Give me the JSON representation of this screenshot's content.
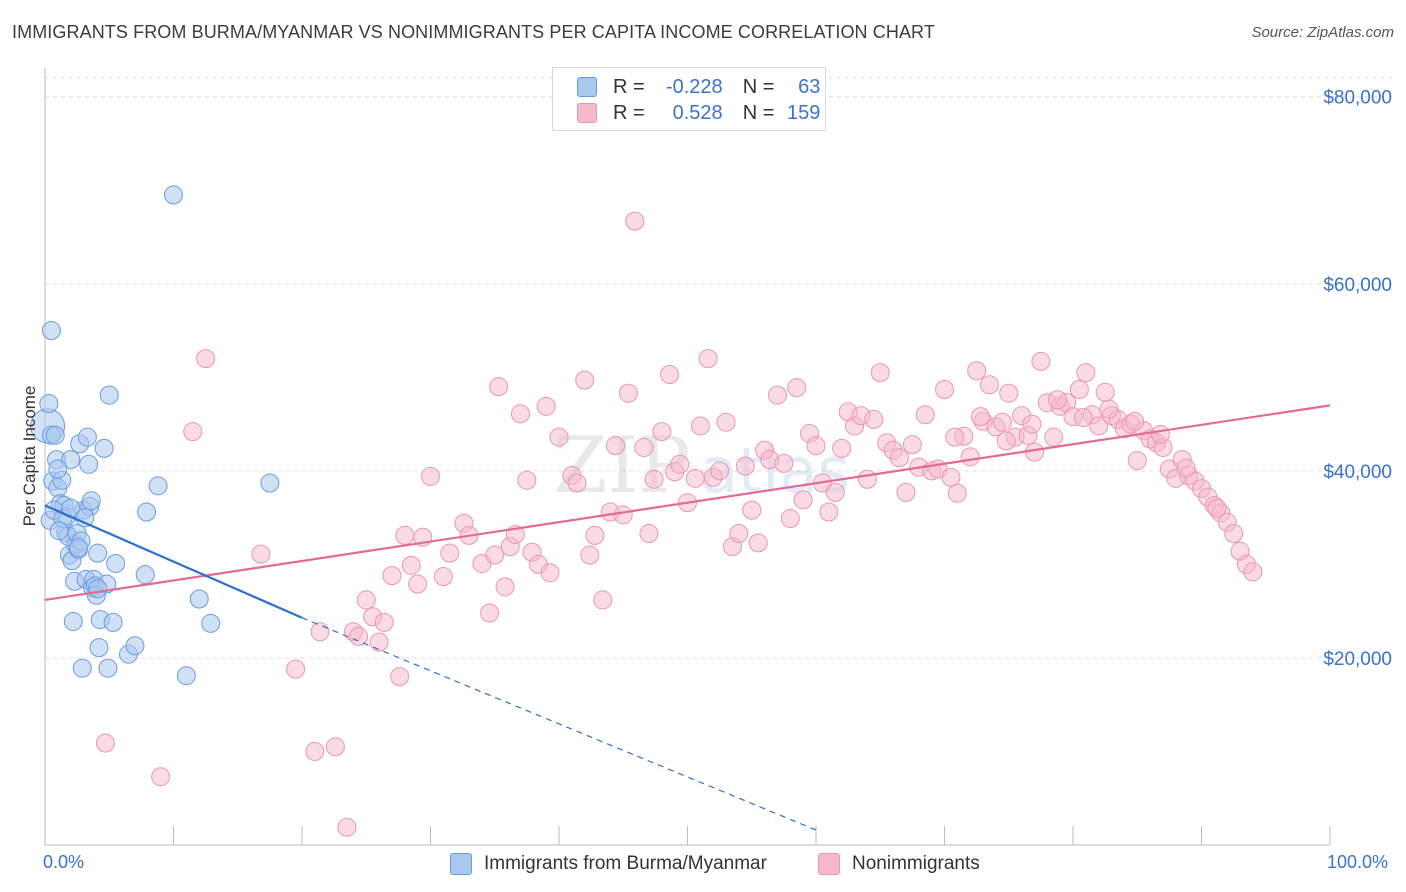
{
  "title": "IMMIGRANTS FROM BURMA/MYANMAR VS NONIMMIGRANTS PER CAPITA INCOME CORRELATION CHART",
  "source": "Source: ZipAtlas.com",
  "watermark": {
    "zip": "ZIP",
    "atlas": "atlas"
  },
  "legend_top": {
    "r_label": "R =",
    "n_label": "N =",
    "rows": [
      {
        "r": "-0.228",
        "n": "63"
      },
      {
        "r": "0.528",
        "n": "159"
      }
    ]
  },
  "colors": {
    "blue_fill": "#a9c8ee",
    "blue_stroke": "#6a9be0",
    "blue_line": "#2d6fce",
    "pink_fill": "#f5b8cb",
    "pink_stroke": "#e996b1",
    "pink_line": "#e36a94",
    "axis_label": "#3a73c9",
    "grid": "#dcdcdc"
  },
  "chart_data": {
    "type": "scatter",
    "title": "IMMIGRANTS FROM BURMA/MYANMAR VS NONIMMIGRANTS PER CAPITA INCOME CORRELATION CHART",
    "xlabel": "",
    "ylabel": "Per Capita Income",
    "xlim": [
      0,
      100
    ],
    "ylim": [
      0,
      80000
    ],
    "x_tick_labels": [
      "0.0%",
      "100.0%"
    ],
    "y_ticks": [
      20000,
      40000,
      60000,
      80000
    ],
    "y_tick_labels": [
      "$20,000",
      "$40,000",
      "$60,000",
      "$80,000"
    ],
    "grid": true,
    "legend": "bottom-center",
    "series": [
      {
        "name": "Immigrants from Burma/Myanmar",
        "color": "#a9c8ee",
        "trend": {
          "x": [
            0,
            20
          ],
          "y": [
            36300,
            24300
          ],
          "dashed_to": [
            60,
            1600
          ]
        },
        "points": [
          [
            0.2,
            44800
          ],
          [
            0.5,
            43800
          ],
          [
            0.4,
            34700
          ],
          [
            0.6,
            38900
          ],
          [
            0.3,
            47200
          ],
          [
            0.5,
            55000
          ],
          [
            0.8,
            43800
          ],
          [
            0.9,
            41200
          ],
          [
            1.0,
            38200
          ],
          [
            1.2,
            36500
          ],
          [
            1.3,
            39000
          ],
          [
            1.5,
            36300
          ],
          [
            1.6,
            33400
          ],
          [
            1.7,
            35100
          ],
          [
            1.8,
            33000
          ],
          [
            1.9,
            31000
          ],
          [
            2.0,
            41200
          ],
          [
            2.1,
            30400
          ],
          [
            2.2,
            23900
          ],
          [
            2.3,
            28200
          ],
          [
            2.4,
            32100
          ],
          [
            2.5,
            33300
          ],
          [
            2.6,
            31600
          ],
          [
            2.7,
            42900
          ],
          [
            2.8,
            32500
          ],
          [
            2.9,
            18900
          ],
          [
            3.0,
            35800
          ],
          [
            3.2,
            28400
          ],
          [
            3.3,
            43600
          ],
          [
            3.4,
            40700
          ],
          [
            3.5,
            36200
          ],
          [
            3.6,
            36800
          ],
          [
            3.7,
            27500
          ],
          [
            3.8,
            28400
          ],
          [
            3.9,
            27700
          ],
          [
            4.0,
            26700
          ],
          [
            4.1,
            31200
          ],
          [
            4.2,
            21100
          ],
          [
            4.3,
            24100
          ],
          [
            4.6,
            42400
          ],
          [
            4.8,
            27900
          ],
          [
            4.9,
            18900
          ],
          [
            5.0,
            48100
          ],
          [
            5.3,
            23800
          ],
          [
            5.5,
            30100
          ],
          [
            6.5,
            20400
          ],
          [
            7.0,
            21300
          ],
          [
            7.8,
            28900
          ],
          [
            7.9,
            35600
          ],
          [
            8.8,
            38400
          ],
          [
            10.0,
            69500
          ],
          [
            11.0,
            18100
          ],
          [
            12.0,
            26300
          ],
          [
            12.9,
            23700
          ],
          [
            17.5,
            38700
          ],
          [
            1.0,
            40200
          ],
          [
            0.7,
            35800
          ],
          [
            1.4,
            34900
          ],
          [
            2.0,
            36000
          ],
          [
            2.6,
            31800
          ],
          [
            3.1,
            35000
          ],
          [
            4.1,
            27400
          ],
          [
            1.1,
            33600
          ]
        ]
      },
      {
        "name": "Nonimmigrants",
        "color": "#f5b8cb",
        "trend": {
          "x": [
            0,
            100
          ],
          "y": [
            26200,
            47000
          ]
        },
        "points": [
          [
            4.7,
            10900
          ],
          [
            9.0,
            7300
          ],
          [
            11.5,
            44200
          ],
          [
            12.5,
            52000
          ],
          [
            16.8,
            31100
          ],
          [
            19.5,
            18800
          ],
          [
            21.0,
            10000
          ],
          [
            21.4,
            22800
          ],
          [
            22.6,
            10500
          ],
          [
            23.5,
            1900
          ],
          [
            24.0,
            22800
          ],
          [
            24.4,
            22300
          ],
          [
            25.0,
            26200
          ],
          [
            25.5,
            24400
          ],
          [
            26.0,
            21700
          ],
          [
            26.4,
            23800
          ],
          [
            27.0,
            28800
          ],
          [
            27.6,
            18000
          ],
          [
            28.0,
            33100
          ],
          [
            28.5,
            29900
          ],
          [
            29.0,
            27900
          ],
          [
            29.4,
            32900
          ],
          [
            30.0,
            39400
          ],
          [
            31.0,
            28700
          ],
          [
            31.5,
            31200
          ],
          [
            32.6,
            34400
          ],
          [
            33.0,
            33100
          ],
          [
            34.0,
            30100
          ],
          [
            34.6,
            24800
          ],
          [
            35.0,
            31000
          ],
          [
            35.3,
            49000
          ],
          [
            35.8,
            27600
          ],
          [
            36.2,
            31900
          ],
          [
            36.6,
            33200
          ],
          [
            37.0,
            46100
          ],
          [
            37.5,
            39000
          ],
          [
            37.9,
            31300
          ],
          [
            38.4,
            30000
          ],
          [
            39.0,
            46900
          ],
          [
            39.3,
            29100
          ],
          [
            40.0,
            43600
          ],
          [
            41.0,
            39500
          ],
          [
            41.4,
            38700
          ],
          [
            42.0,
            49700
          ],
          [
            42.4,
            31000
          ],
          [
            42.8,
            33100
          ],
          [
            43.4,
            26200
          ],
          [
            44.0,
            35600
          ],
          [
            44.4,
            42700
          ],
          [
            45.0,
            35300
          ],
          [
            45.4,
            48300
          ],
          [
            45.9,
            66700
          ],
          [
            46.6,
            42500
          ],
          [
            47.0,
            33300
          ],
          [
            47.4,
            39100
          ],
          [
            48.0,
            44200
          ],
          [
            48.6,
            50300
          ],
          [
            49.0,
            39900
          ],
          [
            49.4,
            40700
          ],
          [
            50.0,
            36600
          ],
          [
            50.6,
            39200
          ],
          [
            51.0,
            44800
          ],
          [
            51.6,
            52000
          ],
          [
            52.0,
            39300
          ],
          [
            52.5,
            40000
          ],
          [
            53.0,
            45200
          ],
          [
            53.5,
            31900
          ],
          [
            54.0,
            33300
          ],
          [
            54.5,
            40500
          ],
          [
            55.0,
            35800
          ],
          [
            55.5,
            32300
          ],
          [
            56.0,
            42200
          ],
          [
            56.4,
            41200
          ],
          [
            57.0,
            48100
          ],
          [
            57.5,
            40800
          ],
          [
            58.0,
            34900
          ],
          [
            58.5,
            48900
          ],
          [
            59.0,
            36900
          ],
          [
            59.5,
            44000
          ],
          [
            60.0,
            42700
          ],
          [
            60.5,
            38700
          ],
          [
            61.0,
            35600
          ],
          [
            61.5,
            37700
          ],
          [
            62.0,
            42400
          ],
          [
            62.5,
            46300
          ],
          [
            63.0,
            44800
          ],
          [
            63.5,
            45900
          ],
          [
            64.0,
            39100
          ],
          [
            64.5,
            45500
          ],
          [
            65.0,
            50500
          ],
          [
            65.5,
            43000
          ],
          [
            66.0,
            42200
          ],
          [
            66.5,
            41400
          ],
          [
            67.0,
            37700
          ],
          [
            67.5,
            42800
          ],
          [
            68.0,
            40400
          ],
          [
            68.5,
            46000
          ],
          [
            69.0,
            40000
          ],
          [
            69.5,
            40200
          ],
          [
            70.0,
            48700
          ],
          [
            70.5,
            39300
          ],
          [
            71.0,
            37600
          ],
          [
            71.5,
            43700
          ],
          [
            72.0,
            41500
          ],
          [
            72.5,
            50700
          ],
          [
            73.0,
            45300
          ],
          [
            73.5,
            49200
          ],
          [
            74.0,
            44700
          ],
          [
            74.5,
            45200
          ],
          [
            75.0,
            48300
          ],
          [
            75.5,
            43600
          ],
          [
            76.0,
            45900
          ],
          [
            76.5,
            43800
          ],
          [
            77.0,
            42000
          ],
          [
            77.5,
            51700
          ],
          [
            78.0,
            47300
          ],
          [
            78.5,
            43600
          ],
          [
            79.0,
            46900
          ],
          [
            79.5,
            47300
          ],
          [
            80.0,
            45800
          ],
          [
            80.5,
            48700
          ],
          [
            81.0,
            50500
          ],
          [
            81.5,
            46000
          ],
          [
            82.0,
            44800
          ],
          [
            82.5,
            48400
          ],
          [
            83.0,
            45900
          ],
          [
            83.5,
            45500
          ],
          [
            84.0,
            44500
          ],
          [
            84.5,
            45000
          ],
          [
            85.0,
            41100
          ],
          [
            85.5,
            44300
          ],
          [
            86.0,
            43400
          ],
          [
            86.5,
            43000
          ],
          [
            87.0,
            42500
          ],
          [
            87.5,
            40200
          ],
          [
            88.0,
            39200
          ],
          [
            88.5,
            41200
          ],
          [
            89.0,
            39500
          ],
          [
            89.5,
            38900
          ],
          [
            90.0,
            38100
          ],
          [
            90.5,
            37200
          ],
          [
            91.0,
            36300
          ],
          [
            91.5,
            35500
          ],
          [
            92.0,
            34500
          ],
          [
            92.5,
            33300
          ],
          [
            93.0,
            31400
          ],
          [
            93.5,
            30000
          ],
          [
            94.0,
            29200
          ],
          [
            91.2,
            36000
          ],
          [
            88.8,
            40300
          ],
          [
            86.8,
            43900
          ],
          [
            84.8,
            45300
          ],
          [
            82.8,
            46600
          ],
          [
            80.8,
            45700
          ],
          [
            78.8,
            47600
          ],
          [
            76.8,
            45000
          ],
          [
            74.8,
            43200
          ],
          [
            72.8,
            45800
          ],
          [
            70.8,
            43600
          ]
        ]
      }
    ]
  },
  "bottom_legend": [
    {
      "label": "Immigrants from Burma/Myanmar"
    },
    {
      "label": "Nonimmigrants"
    }
  ]
}
